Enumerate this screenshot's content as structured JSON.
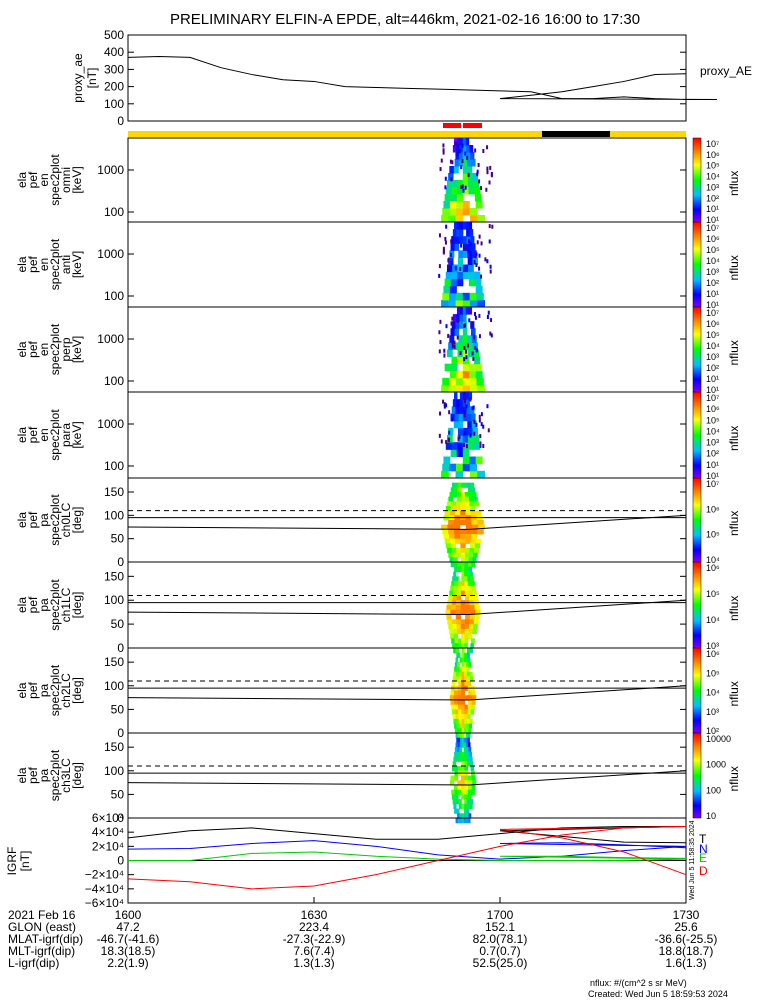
{
  "title": "PRELIMINARY ELFIN-A EPDE, alt=446km, 2021-02-16 16:00 to 17:30",
  "colors": {
    "yellow": "#ffd700",
    "red": "#ff0000",
    "black": "#000000",
    "T": "#000000",
    "N": "#0000ff",
    "E": "#00cc00",
    "D": "#ff0000"
  },
  "chart_data": [
    {
      "type": "line",
      "id": "proxy_ae",
      "ylabel": "proxy_ae [nT]",
      "legend": "proxy_AE",
      "ylim": [
        0,
        500
      ],
      "yticks": [
        "500",
        "400",
        "300",
        "200",
        "100",
        "0"
      ],
      "x": [
        1600,
        1605,
        1610,
        1615,
        1620,
        1625,
        1630,
        1635,
        1640,
        1645,
        1650,
        1655,
        1660,
        1665,
        1670,
        1675,
        1680,
        1685,
        1690,
        1695,
        1700,
        1705,
        1710,
        1715,
        1720,
        1725,
        1730
      ],
      "y": [
        370,
        375,
        370,
        310,
        270,
        240,
        230,
        200,
        195,
        190,
        185,
        180,
        175,
        170,
        130,
        130,
        140,
        130,
        125,
        125,
        130,
        150,
        170,
        200,
        230,
        270,
        275
      ]
    },
    {
      "type": "heatmap",
      "id": "ela_pef_en_spec2plot_omni",
      "ylabel": [
        "ela",
        "pef",
        "en",
        "spec2plot",
        "omni",
        "[keV]"
      ],
      "scale": "log",
      "yticks": [
        "1000",
        "100"
      ],
      "colorbar": {
        "label": "nflux",
        "ticks": [
          "10⁷",
          "10⁶",
          "10⁵",
          "10⁴",
          "10³",
          "10²",
          "10¹",
          "10¹"
        ]
      },
      "active_interval": [
        1651,
        1656
      ]
    },
    {
      "type": "heatmap",
      "id": "ela_pef_en_spec2plot_anti",
      "ylabel": [
        "ela",
        "pef",
        "en",
        "spec2plot",
        "anti",
        "[keV]"
      ],
      "scale": "log",
      "yticks": [
        "1000",
        "100"
      ],
      "colorbar": {
        "label": "nflux",
        "ticks": [
          "10⁷",
          "10⁶",
          "10⁵",
          "10⁴",
          "10³",
          "10²",
          "10¹",
          "10¹"
        ]
      },
      "active_interval": [
        1651,
        1656
      ]
    },
    {
      "type": "heatmap",
      "id": "ela_pef_en_spec2plot_perp",
      "ylabel": [
        "ela",
        "pef",
        "en",
        "spec2plot",
        "perp",
        "[keV]"
      ],
      "scale": "log",
      "yticks": [
        "1000",
        "100"
      ],
      "colorbar": {
        "label": "nflux",
        "ticks": [
          "10⁷",
          "10⁶",
          "10⁵",
          "10⁴",
          "10³",
          "10²",
          "10¹",
          "10¹"
        ]
      },
      "active_interval": [
        1651,
        1656
      ]
    },
    {
      "type": "heatmap",
      "id": "ela_pef_en_spec2plot_para",
      "ylabel": [
        "ela",
        "pef",
        "en",
        "spec2plot",
        "para",
        "[keV]"
      ],
      "scale": "log",
      "yticks": [
        "1000",
        "100"
      ],
      "colorbar": {
        "label": "nflux",
        "ticks": [
          "10⁷",
          "10⁶",
          "10⁵",
          "10⁴",
          "10³",
          "10²",
          "10¹",
          "10¹"
        ]
      },
      "active_interval": [
        1651,
        1656
      ]
    },
    {
      "type": "heatmap",
      "id": "ela_pef_pa_spec2plot_ch0LC",
      "ylabel": [
        "ela",
        "pef",
        "pa",
        "spec2plot",
        "ch0LC",
        "[deg]"
      ],
      "ylim": [
        0,
        180
      ],
      "yticks": [
        "150",
        "100",
        "50",
        "0"
      ],
      "colorbar": {
        "label": "nflux",
        "ticks": [
          "10⁷",
          "10⁶",
          "10⁵",
          "10⁴"
        ]
      },
      "loss_cone_solid": [
        75,
        70,
        100
      ],
      "loss_cone_dashed": [
        110
      ]
    },
    {
      "type": "heatmap",
      "id": "ela_pef_pa_spec2plot_ch1LC",
      "ylabel": [
        "ela",
        "pef",
        "pa",
        "spec2plot",
        "ch1LC",
        "[deg]"
      ],
      "ylim": [
        0,
        180
      ],
      "yticks": [
        "150",
        "100",
        "50",
        "0"
      ],
      "colorbar": {
        "label": "nflux",
        "ticks": [
          "10⁶",
          "10⁵",
          "10⁴",
          "10³"
        ]
      },
      "loss_cone_solid": [
        75,
        70,
        100
      ],
      "loss_cone_dashed": [
        110
      ]
    },
    {
      "type": "heatmap",
      "id": "ela_pef_pa_spec2plot_ch2LC",
      "ylabel": [
        "ela",
        "pef",
        "pa",
        "spec2plot",
        "ch2LC",
        "[deg]"
      ],
      "ylim": [
        0,
        180
      ],
      "yticks": [
        "150",
        "100",
        "50",
        "0"
      ],
      "colorbar": {
        "label": "nflux",
        "ticks": [
          "10⁶",
          "10⁵",
          "10⁴",
          "10³",
          "10²"
        ]
      },
      "loss_cone_solid": [
        75,
        70,
        100
      ],
      "loss_cone_dashed": [
        110
      ]
    },
    {
      "type": "heatmap",
      "id": "ela_pef_pa_spec2plot_ch3LC",
      "ylabel": [
        "ela",
        "pef",
        "pa",
        "spec2plot",
        "ch3LC",
        "[deg]"
      ],
      "ylim": [
        0,
        180
      ],
      "yticks": [
        "150",
        "100",
        "50",
        "0"
      ],
      "colorbar": {
        "label": "nflux",
        "ticks": [
          "10000",
          "1000",
          "100",
          "10"
        ]
      },
      "loss_cone_solid": [
        75,
        70,
        100
      ],
      "loss_cone_dashed": [
        110
      ]
    },
    {
      "type": "line",
      "id": "igrf",
      "ylabel": "IGRF [nT]",
      "ylim": [
        -60000,
        60000
      ],
      "yticks": [
        "6×10⁴",
        "4×10⁴",
        "2×10⁴",
        "0",
        "−2×10⁴",
        "−4×10⁴",
        "−6×10⁴"
      ],
      "x": [
        1600,
        1610,
        1620,
        1630,
        1640,
        1650,
        1660,
        1670,
        1680,
        1690,
        1700,
        1710,
        1720,
        1730
      ],
      "series": [
        {
          "name": "T",
          "values": [
            32000,
            42000,
            46000,
            38000,
            30000,
            30000,
            38000,
            46000,
            48000,
            48000,
            42000,
            34000,
            26000,
            25000
          ]
        },
        {
          "name": "N",
          "values": [
            16000,
            17000,
            24000,
            28000,
            20000,
            8000,
            2000,
            6000,
            14000,
            20000,
            24000,
            25000,
            22000,
            18000
          ]
        },
        {
          "name": "E",
          "values": [
            0,
            0,
            10000,
            12000,
            6000,
            2000,
            0,
            0,
            0,
            2000,
            6000,
            6000,
            4000,
            3000
          ]
        },
        {
          "name": "D",
          "values": [
            -26000,
            -30000,
            -40000,
            -36000,
            -20000,
            0,
            20000,
            36000,
            46000,
            48000,
            44000,
            32000,
            12000,
            -20000
          ]
        }
      ]
    }
  ],
  "x_axis": {
    "ticks": [
      "1600",
      "1630",
      "1700",
      "1730"
    ],
    "rows": [
      {
        "label": "2021 Feb 16",
        "values": [
          "1600",
          "1630",
          "1700",
          "1730"
        ]
      },
      {
        "label": "GLON (east)",
        "values": [
          "47.2",
          "223.4",
          "152.1",
          "25.6"
        ]
      },
      {
        "label": "MLAT-igrf(dip)",
        "values": [
          "-46.7(-41.6)",
          "-27.3(-22.9)",
          "82.0(78.1)",
          "-36.6(-25.5)"
        ]
      },
      {
        "label": "MLT-igrf(dip)",
        "values": [
          "18.3(18.5)",
          "7.6(7.4)",
          "0.7(0.7)",
          "18.8(18.7)"
        ]
      },
      {
        "label": "L-igrf(dip)",
        "values": [
          "2.2(1.9)",
          "1.3(1.3)",
          "52.5(25.0)",
          "1.6(1.3)"
        ]
      }
    ]
  },
  "footer": {
    "units": "nflux: #/(cm^2 s sr MeV)",
    "created": "Created: Wed Jun  5 18:59:53 2024"
  },
  "side_stamp": "Wed Jun  5 11:58:35 2024"
}
